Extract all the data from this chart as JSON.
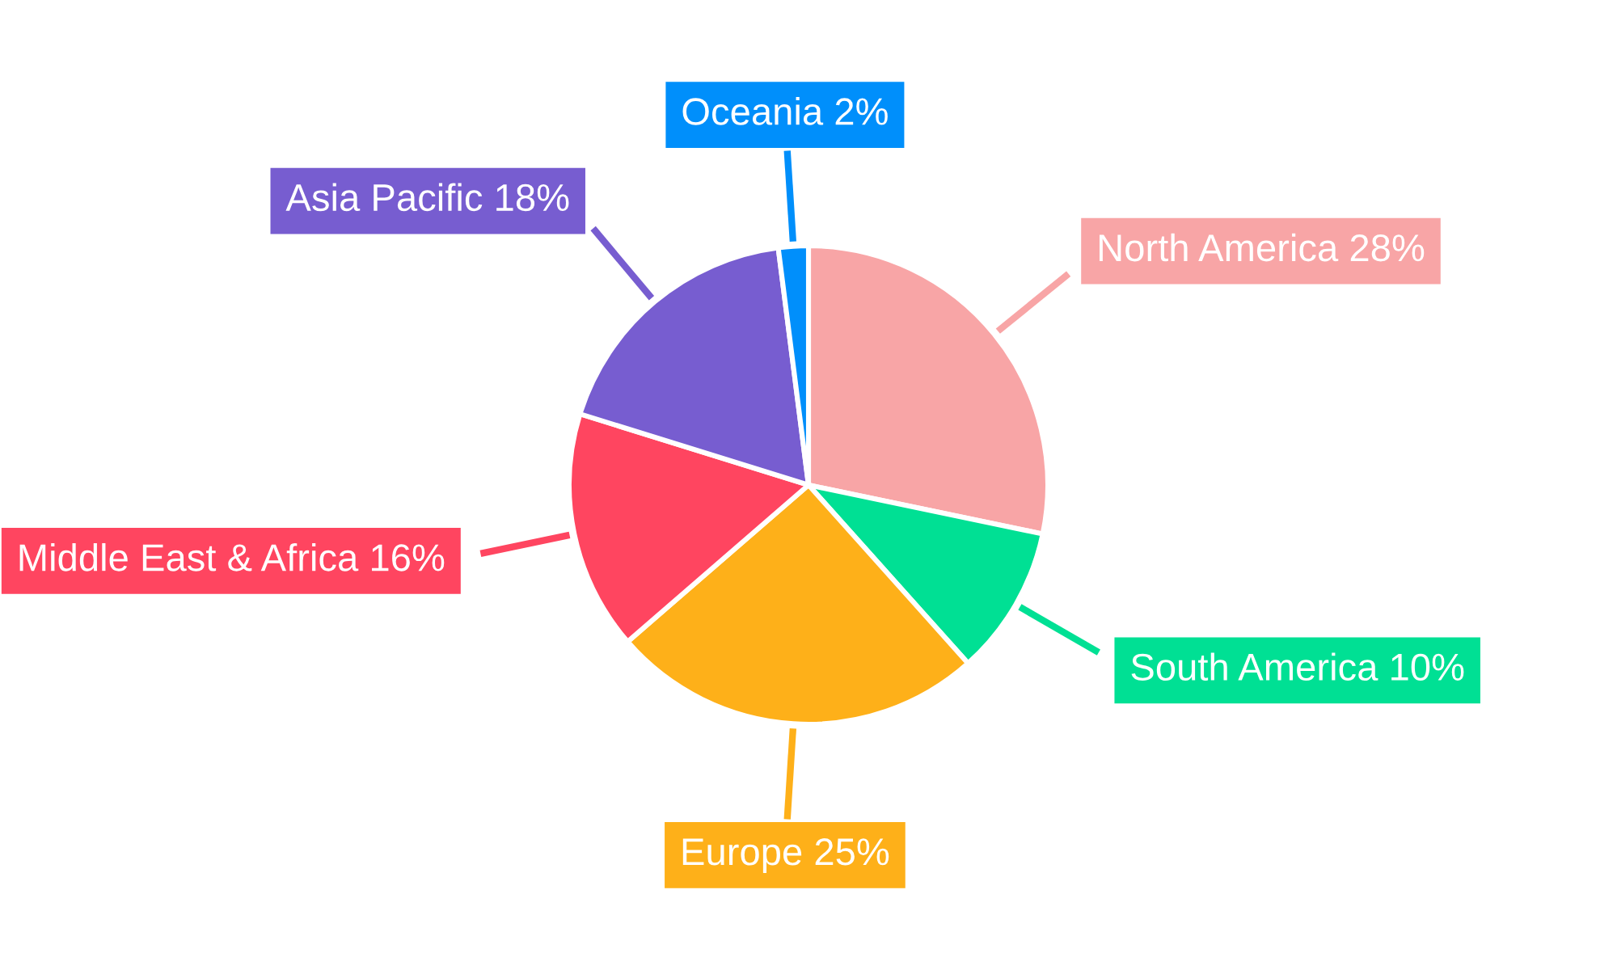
{
  "chart_data": {
    "type": "pie",
    "categories": [
      "North America",
      "South America",
      "Europe",
      "Middle East & Africa",
      "Asia Pacific",
      "Oceania"
    ],
    "values": [
      28,
      10,
      25,
      16,
      18,
      2
    ],
    "value_labels": [
      "28%",
      "10%",
      "25%",
      "16%",
      "18%",
      "2%"
    ],
    "colors": [
      "#f8a5a6",
      "#00e094",
      "#feb019",
      "#ff4560",
      "#775dd0",
      "#008ffb"
    ]
  }
}
